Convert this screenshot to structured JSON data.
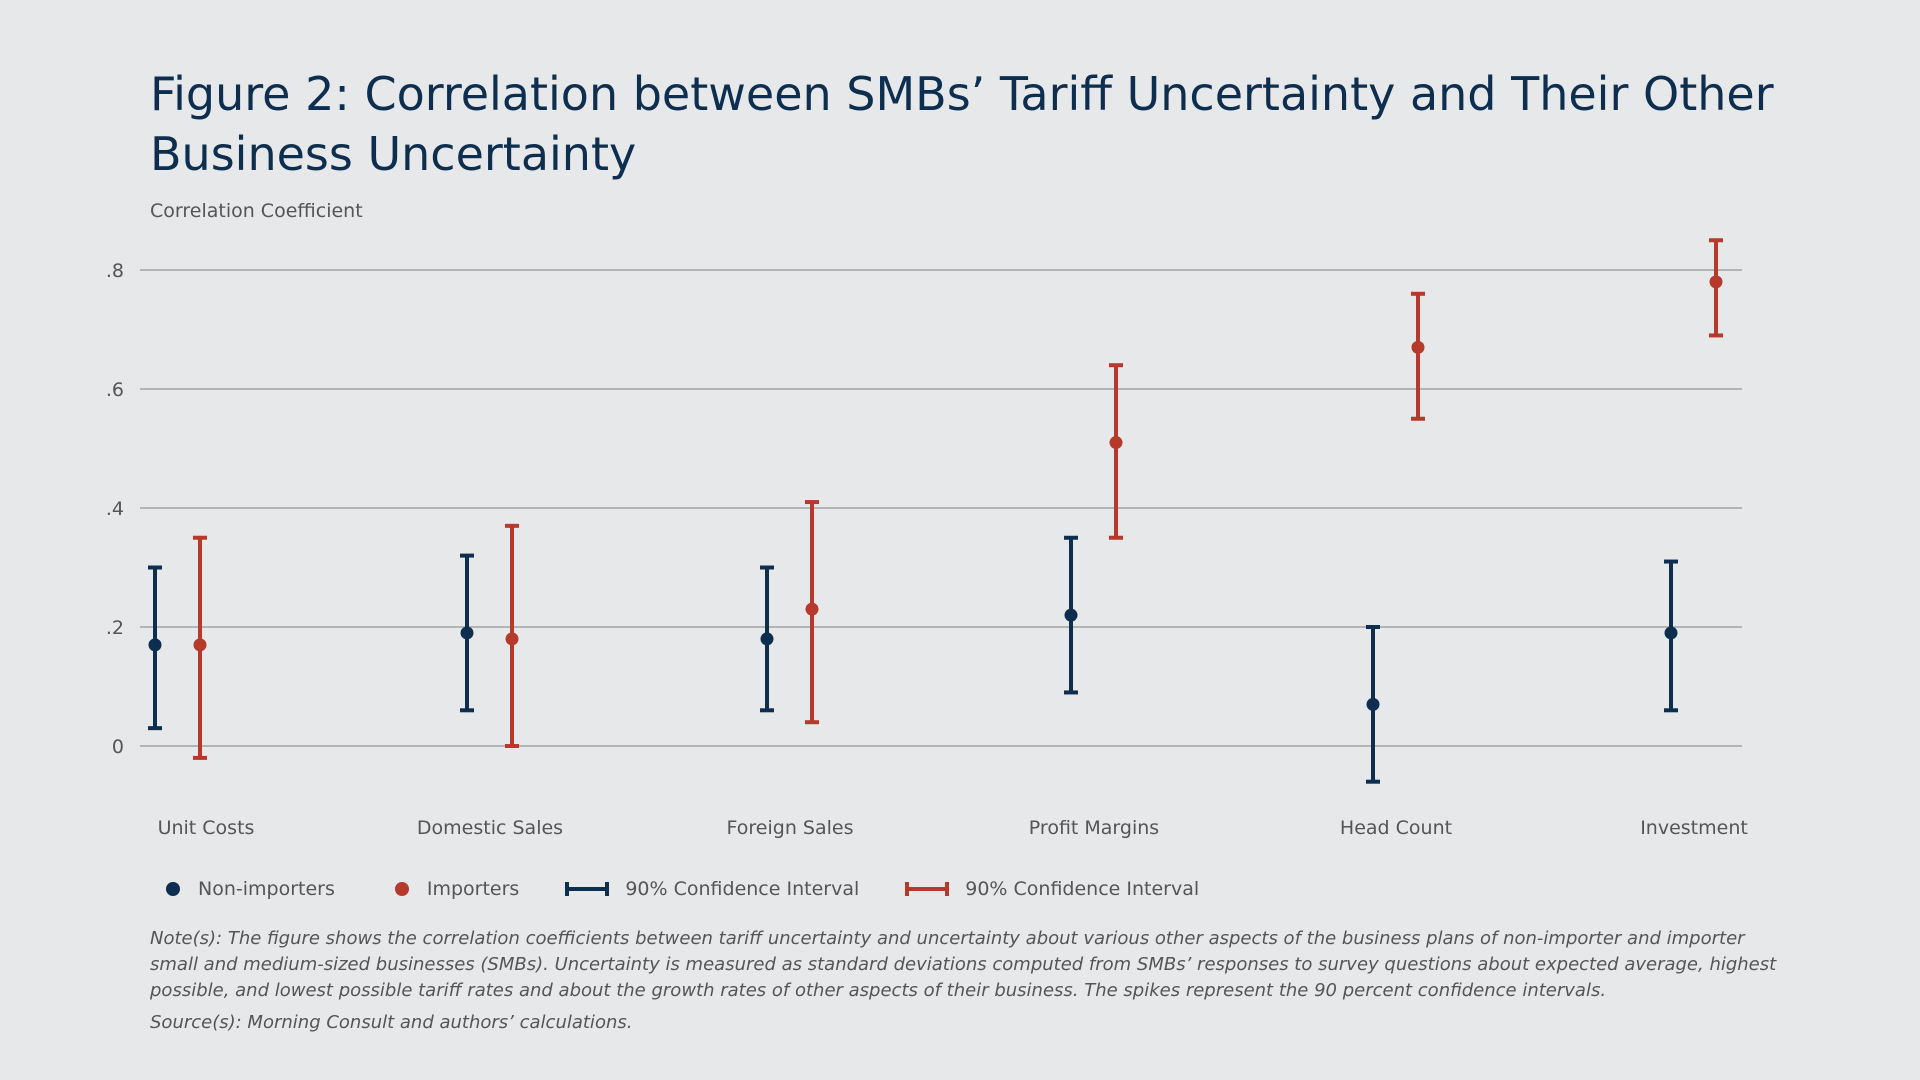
{
  "title": "Figure 2: Correlation between SMBs’ Tariff Uncertainty and Their Other Business Uncertainty",
  "colors": {
    "non_importers": "#0d2e4f",
    "importers": "#b63a2b",
    "grid": "#a3a3a3",
    "background": "#e7e8ea"
  },
  "chart_data": {
    "type": "scatter",
    "ylabel": "Correlation Coefficient",
    "ylim": [
      -0.08,
      0.88
    ],
    "yticks": [
      0,
      0.2,
      0.4,
      0.6,
      0.8
    ],
    "ytick_labels": [
      "0",
      ".2",
      ".4",
      ".6",
      ".8"
    ],
    "grid": true,
    "legend_position": "bottom-left",
    "categories": [
      "Unit Costs",
      "Domestic Sales",
      "Foreign Sales",
      "Profit Margins",
      "Head Count",
      "Investment"
    ],
    "series": [
      {
        "name": "Non-importers",
        "color": "#0d2e4f",
        "values": [
          0.17,
          0.19,
          0.18,
          0.22,
          0.07,
          0.19
        ],
        "ci_low": [
          0.03,
          0.06,
          0.06,
          0.09,
          -0.06,
          0.06
        ],
        "ci_high": [
          0.3,
          0.32,
          0.3,
          0.35,
          0.2,
          0.31
        ]
      },
      {
        "name": "Importers",
        "color": "#b63a2b",
        "values": [
          0.17,
          0.18,
          0.23,
          0.51,
          0.67,
          0.78
        ],
        "ci_low": [
          -0.02,
          0.0,
          0.04,
          0.35,
          0.55,
          0.69
        ],
        "ci_high": [
          0.35,
          0.37,
          0.41,
          0.64,
          0.76,
          0.85
        ]
      }
    ],
    "legend": [
      {
        "type": "dot",
        "label": "Non-importers",
        "color": "#0d2e4f"
      },
      {
        "type": "dot",
        "label": "Importers",
        "color": "#b63a2b"
      },
      {
        "type": "ci",
        "label": "90% Confidence Interval",
        "color": "#0d2e4f"
      },
      {
        "type": "ci",
        "label": "90% Confidence Interval",
        "color": "#b63a2b"
      }
    ]
  },
  "note": "Note(s): The figure shows the correlation coefficients between tariff uncertainty and uncertainty about various other aspects of the business plans of non-importer and importer small and medium-sized businesses (SMBs). Uncertainty is measured as standard deviations computed from SMBs’ responses to survey questions about expected average, highest possible, and lowest possible tariff rates and about  the growth rates of other aspects of their business. The spikes represent the 90 percent confidence intervals.",
  "source": "Source(s): Morning Consult and authors’ calculations."
}
